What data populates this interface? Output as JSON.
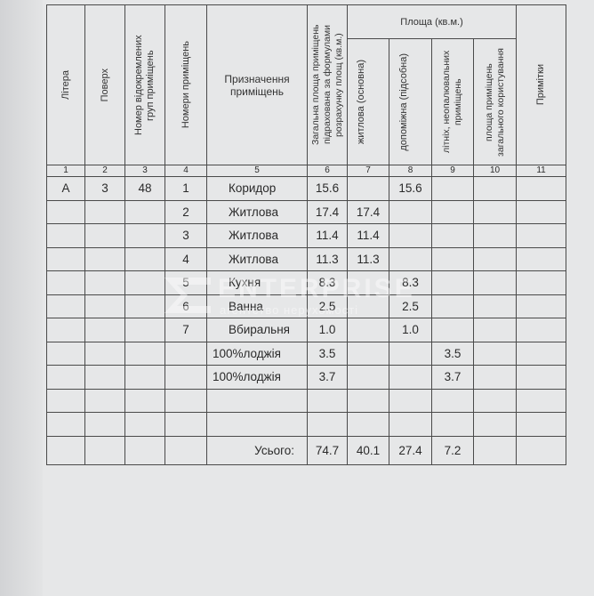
{
  "headers": {
    "litera": "Літера",
    "poverkh": "Поверх",
    "group_number": "Номер відокремлених груп приміщень",
    "room_numbers": "Номери приміщень",
    "purpose": "Призначення приміщень",
    "total_area": "Загальна площа приміщень підрахована за формулами розрахунку площ (кв.м.)",
    "area_group": "Площа (кв.м.)",
    "living": "житлова (основна)",
    "auxiliary": "допоміжна (підсобна)",
    "summer": "літніх, неопалювальних приміщень",
    "common": "площа приміщень загального користування",
    "notes": "Примітки"
  },
  "column_numbers": [
    "1",
    "2",
    "3",
    "4",
    "5",
    "6",
    "7",
    "8",
    "9",
    "10",
    "11"
  ],
  "rows": [
    {
      "litera": "А",
      "floor": "3",
      "group": "48",
      "num": "1",
      "name": "Коридор",
      "total": "15.6",
      "living": "",
      "aux": "15.6",
      "summer": "",
      "common": "",
      "notes": ""
    },
    {
      "litera": "",
      "floor": "",
      "group": "",
      "num": "2",
      "name": "Житлова",
      "total": "17.4",
      "living": "17.4",
      "aux": "",
      "summer": "",
      "common": "",
      "notes": ""
    },
    {
      "litera": "",
      "floor": "",
      "group": "",
      "num": "3",
      "name": "Житлова",
      "total": "11.4",
      "living": "11.4",
      "aux": "",
      "summer": "",
      "common": "",
      "notes": ""
    },
    {
      "litera": "",
      "floor": "",
      "group": "",
      "num": "4",
      "name": "Житлова",
      "total": "11.3",
      "living": "11.3",
      "aux": "",
      "summer": "",
      "common": "",
      "notes": ""
    },
    {
      "litera": "",
      "floor": "",
      "group": "",
      "num": "5",
      "name": "Кухня",
      "total": "8.3",
      "living": "",
      "aux": "8.3",
      "summer": "",
      "common": "",
      "notes": ""
    },
    {
      "litera": "",
      "floor": "",
      "group": "",
      "num": "6",
      "name": "Ванна",
      "total": "2.5",
      "living": "",
      "aux": "2.5",
      "summer": "",
      "common": "",
      "notes": ""
    },
    {
      "litera": "",
      "floor": "",
      "group": "",
      "num": "7",
      "name": "Вбиральня",
      "total": "1.0",
      "living": "",
      "aux": "1.0",
      "summer": "",
      "common": "",
      "notes": ""
    },
    {
      "litera": "",
      "floor": "",
      "group": "",
      "num": "",
      "name": "100%лоджія",
      "total": "3.5",
      "living": "",
      "aux": "",
      "summer": "3.5",
      "common": "",
      "notes": ""
    },
    {
      "litera": "",
      "floor": "",
      "group": "",
      "num": "",
      "name": "100%лоджія",
      "total": "3.7",
      "living": "",
      "aux": "",
      "summer": "3.7",
      "common": "",
      "notes": ""
    },
    {
      "litera": "",
      "floor": "",
      "group": "",
      "num": "",
      "name": "",
      "total": "",
      "living": "",
      "aux": "",
      "summer": "",
      "common": "",
      "notes": ""
    },
    {
      "litera": "",
      "floor": "",
      "group": "",
      "num": "",
      "name": "",
      "total": "",
      "living": "",
      "aux": "",
      "summer": "",
      "common": "",
      "notes": ""
    }
  ],
  "totals": {
    "label": "Усього:",
    "total": "74.7",
    "living": "40.1",
    "aux": "27.4",
    "summer": "7.2"
  },
  "watermark": {
    "brand": "ENTERPRISE",
    "sub": "агентство нерухомості"
  }
}
